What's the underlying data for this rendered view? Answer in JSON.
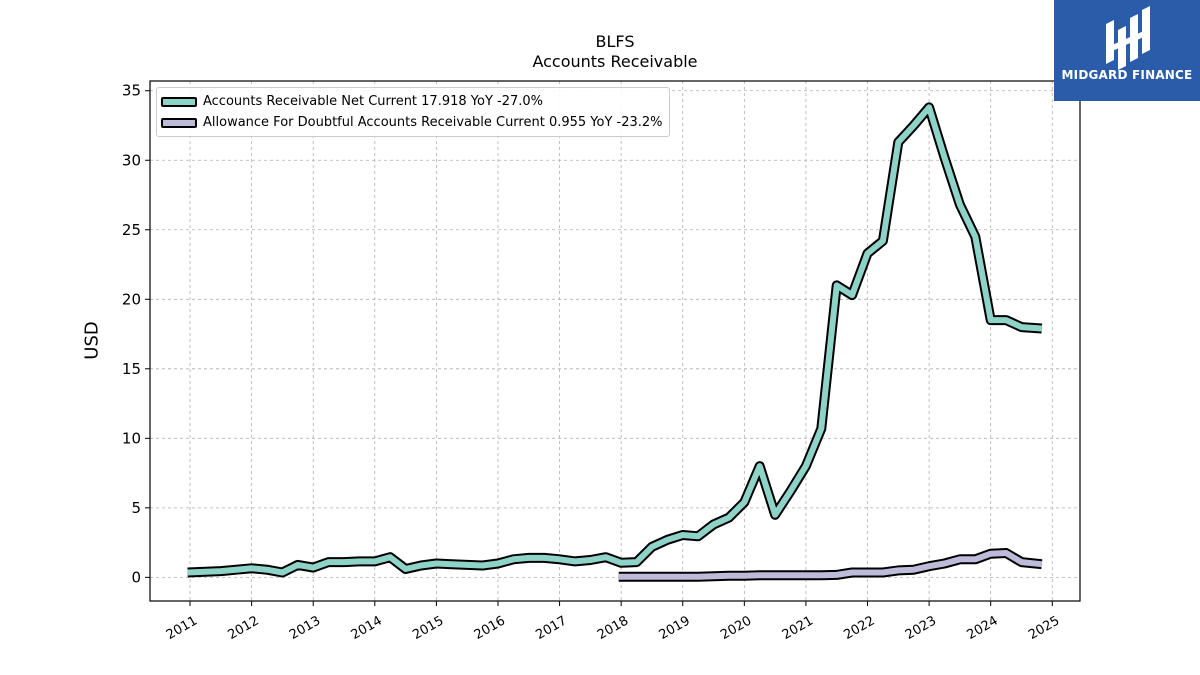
{
  "chart_data": {
    "type": "line",
    "title": "BLFS",
    "subtitle": "Accounts Receivable",
    "ylabel": "USD",
    "xlim": [
      2010.35,
      2025.45
    ],
    "ylim": [
      -1.7,
      35.7
    ],
    "yticks": [
      0,
      5,
      10,
      15,
      20,
      25,
      30,
      35
    ],
    "xticks": [
      "2011",
      "2012",
      "2013",
      "2014",
      "2015",
      "2016",
      "2017",
      "2018",
      "2019",
      "2020",
      "2021",
      "2022",
      "2023",
      "2024",
      "2025"
    ],
    "grid": true,
    "legend_position": "top-left",
    "series": [
      {
        "name": "Accounts Receivable Net Current  17.918 YoY -27.0%",
        "color": "#8dd3c7",
        "x": [
          2010.96,
          2011.25,
          2011.5,
          2011.75,
          2012.0,
          2012.25,
          2012.5,
          2012.75,
          2013.0,
          2013.25,
          2013.5,
          2013.75,
          2014.0,
          2014.25,
          2014.5,
          2014.75,
          2015.0,
          2015.25,
          2015.5,
          2015.75,
          2016.0,
          2016.25,
          2016.5,
          2016.75,
          2017.0,
          2017.25,
          2017.5,
          2017.75,
          2018.0,
          2018.25,
          2018.5,
          2018.75,
          2019.0,
          2019.25,
          2019.5,
          2019.75,
          2020.0,
          2020.25,
          2020.5,
          2020.75,
          2021.0,
          2021.25,
          2021.5,
          2021.75,
          2022.0,
          2022.25,
          2022.5,
          2022.75,
          2023.0,
          2023.25,
          2023.5,
          2023.75,
          2024.0,
          2024.25,
          2024.5,
          2024.83
        ],
        "y": [
          0.35,
          0.4,
          0.45,
          0.55,
          0.65,
          0.55,
          0.35,
          0.9,
          0.7,
          1.1,
          1.1,
          1.15,
          1.15,
          1.45,
          0.6,
          0.85,
          1.0,
          0.95,
          0.9,
          0.85,
          1.0,
          1.3,
          1.4,
          1.4,
          1.3,
          1.15,
          1.25,
          1.45,
          1.05,
          1.1,
          2.2,
          2.7,
          3.05,
          2.95,
          3.8,
          4.3,
          5.4,
          8.0,
          4.5,
          6.2,
          8.0,
          10.7,
          21.0,
          20.3,
          23.3,
          24.2,
          31.3,
          32.5,
          33.8,
          30.2,
          26.8,
          24.5,
          18.5,
          18.5,
          18.0,
          17.9
        ]
      },
      {
        "name": "Allowance For Doubtful Accounts Receivable Current  0.955 YoY -23.2%",
        "color": "#bebada",
        "x": [
          2017.96,
          2018.25,
          2018.5,
          2018.75,
          2019.0,
          2019.25,
          2019.5,
          2019.75,
          2020.0,
          2020.25,
          2020.5,
          2020.75,
          2021.0,
          2021.25,
          2021.5,
          2021.75,
          2022.0,
          2022.25,
          2022.5,
          2022.75,
          2023.0,
          2023.25,
          2023.5,
          2023.75,
          2024.0,
          2024.25,
          2024.5,
          2024.83
        ],
        "y": [
          0.05,
          0.05,
          0.05,
          0.05,
          0.05,
          0.05,
          0.08,
          0.12,
          0.12,
          0.15,
          0.15,
          0.15,
          0.15,
          0.15,
          0.18,
          0.35,
          0.35,
          0.35,
          0.5,
          0.55,
          0.8,
          1.0,
          1.3,
          1.3,
          1.7,
          1.75,
          1.1,
          0.95
        ]
      }
    ]
  },
  "header": {
    "title": "BLFS",
    "subtitle": "Accounts Receivable"
  },
  "axis": {
    "ylabel": "USD"
  },
  "legend": {
    "items": [
      {
        "label": "Accounts Receivable Net Current  17.918 YoY -27.0%",
        "color": "#8dd3c7"
      },
      {
        "label": "Allowance For Doubtful Accounts Receivable Current  0.955 YoY -23.2%",
        "color": "#bebada"
      }
    ]
  },
  "logo": {
    "text": "MIDGARD FINANCE",
    "background": "#2a5caa"
  }
}
